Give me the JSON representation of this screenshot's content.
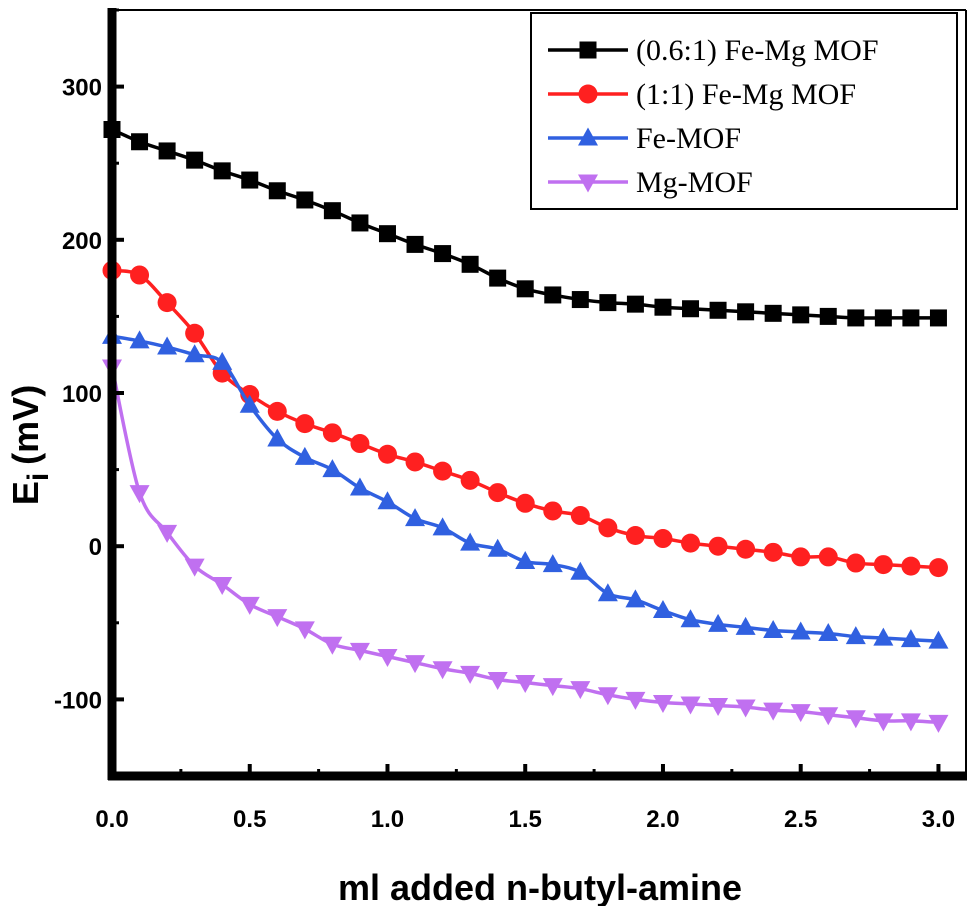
{
  "chart_data": {
    "type": "line",
    "xlabel": "ml added n-butyl-amine",
    "ylabel_main": "E",
    "ylabel_sub": "i",
    "ylabel_unit": "(mV)",
    "xlim": [
      0,
      3.1
    ],
    "ylim": [
      -150,
      350
    ],
    "xticks": [
      0.0,
      0.5,
      1.0,
      1.5,
      2.0,
      2.5,
      3.0
    ],
    "xtick_labels": [
      "0.0",
      "0.5",
      "1.0",
      "1.5",
      "2.0",
      "2.5",
      "3.0"
    ],
    "yticks": [
      -100,
      0,
      100,
      200,
      300
    ],
    "ytick_labels": [
      "-100",
      "0",
      "100",
      "200",
      "300"
    ],
    "grid": false,
    "legend_position": "top-right",
    "x": [
      0.0,
      0.1,
      0.2,
      0.3,
      0.4,
      0.5,
      0.6,
      0.7,
      0.8,
      0.9,
      1.0,
      1.1,
      1.2,
      1.3,
      1.4,
      1.5,
      1.6,
      1.7,
      1.8,
      1.9,
      2.0,
      2.1,
      2.2,
      2.3,
      2.4,
      2.5,
      2.6,
      2.7,
      2.8,
      2.9,
      3.0
    ],
    "series": [
      {
        "name": "(0.6:1) Fe-Mg MOF",
        "color": "#000000",
        "marker": "square",
        "values": [
          272,
          264,
          258,
          252,
          245,
          239,
          232,
          226,
          219,
          211,
          204,
          197,
          191,
          184,
          175,
          168,
          164,
          161,
          159,
          158,
          156,
          155,
          154,
          153,
          152,
          151,
          150,
          149,
          149,
          149,
          149
        ]
      },
      {
        "name": "(1:1) Fe-Mg MOF",
        "color": "#ff2020",
        "marker": "circle",
        "values": [
          180,
          177,
          159,
          139,
          113,
          99,
          88,
          80,
          74,
          67,
          60,
          55,
          49,
          43,
          35,
          28,
          23,
          20,
          12,
          7,
          5,
          2,
          0,
          -2,
          -4,
          -7,
          -7,
          -11,
          -12,
          -13,
          -14
        ]
      },
      {
        "name": "Fe-MOF",
        "color": "#3060e0",
        "marker": "triangle-up",
        "values": [
          137,
          134,
          130,
          125,
          120,
          92,
          70,
          58,
          50,
          38,
          29,
          18,
          12,
          2,
          -2,
          -10,
          -12,
          -17,
          -31,
          -35,
          -42,
          -48,
          -51,
          -53,
          -55,
          -56,
          -57,
          -59,
          -60,
          -61,
          -62
        ]
      },
      {
        "name": "Mg-MOF",
        "color": "#c070f0",
        "marker": "triangle-down",
        "values": [
          117,
          35,
          9,
          -13,
          -25,
          -38,
          -46,
          -54,
          -64,
          -68,
          -72,
          -76,
          -80,
          -83,
          -87,
          -89,
          -91,
          -93,
          -97,
          -100,
          -102,
          -103,
          -104,
          -105,
          -107,
          -108,
          -110,
          -112,
          -114,
          -114,
          -115
        ]
      }
    ]
  }
}
